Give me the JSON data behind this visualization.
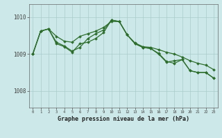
{
  "title": "Graphe pression niveau de la mer (hPa)",
  "background_color": "#cce8e8",
  "grid_color": "#aacccc",
  "line_color": "#2d6e2d",
  "xlim": [
    -0.5,
    23.5
  ],
  "ylim": [
    1007.55,
    1010.35
  ],
  "yticks": [
    1008,
    1009,
    1010
  ],
  "xticks": [
    0,
    1,
    2,
    3,
    4,
    5,
    6,
    7,
    8,
    9,
    10,
    11,
    12,
    13,
    14,
    15,
    16,
    17,
    18,
    19,
    20,
    21,
    22,
    23
  ],
  "series": [
    [
      1009.0,
      1009.62,
      1009.68,
      1009.48,
      1009.35,
      1009.32,
      1009.48,
      1009.55,
      1009.62,
      1009.72,
      1009.88,
      1009.88,
      1009.52,
      1009.3,
      1009.2,
      1009.18,
      1009.12,
      1009.05,
      1009.0,
      1008.92,
      1008.82,
      1008.75,
      1008.7,
      1008.58
    ],
    [
      1009.0,
      1009.62,
      1009.68,
      1009.32,
      1009.22,
      1009.08,
      1009.18,
      1009.42,
      1009.55,
      1009.65,
      1009.92,
      1009.88,
      1009.52,
      1009.28,
      1009.18,
      1009.15,
      1009.0,
      1008.78,
      1008.82,
      1008.85,
      1008.55,
      1008.5,
      1008.5,
      1008.35
    ],
    [
      1009.0,
      1009.62,
      1009.68,
      1009.28,
      1009.2,
      1009.05,
      1009.28,
      1009.32,
      1009.42,
      1009.58,
      1009.92,
      1009.88,
      1009.52,
      1009.28,
      1009.18,
      1009.15,
      1009.02,
      1008.8,
      1008.75,
      1008.85,
      1008.55,
      1008.5,
      1008.5,
      1008.35
    ]
  ]
}
